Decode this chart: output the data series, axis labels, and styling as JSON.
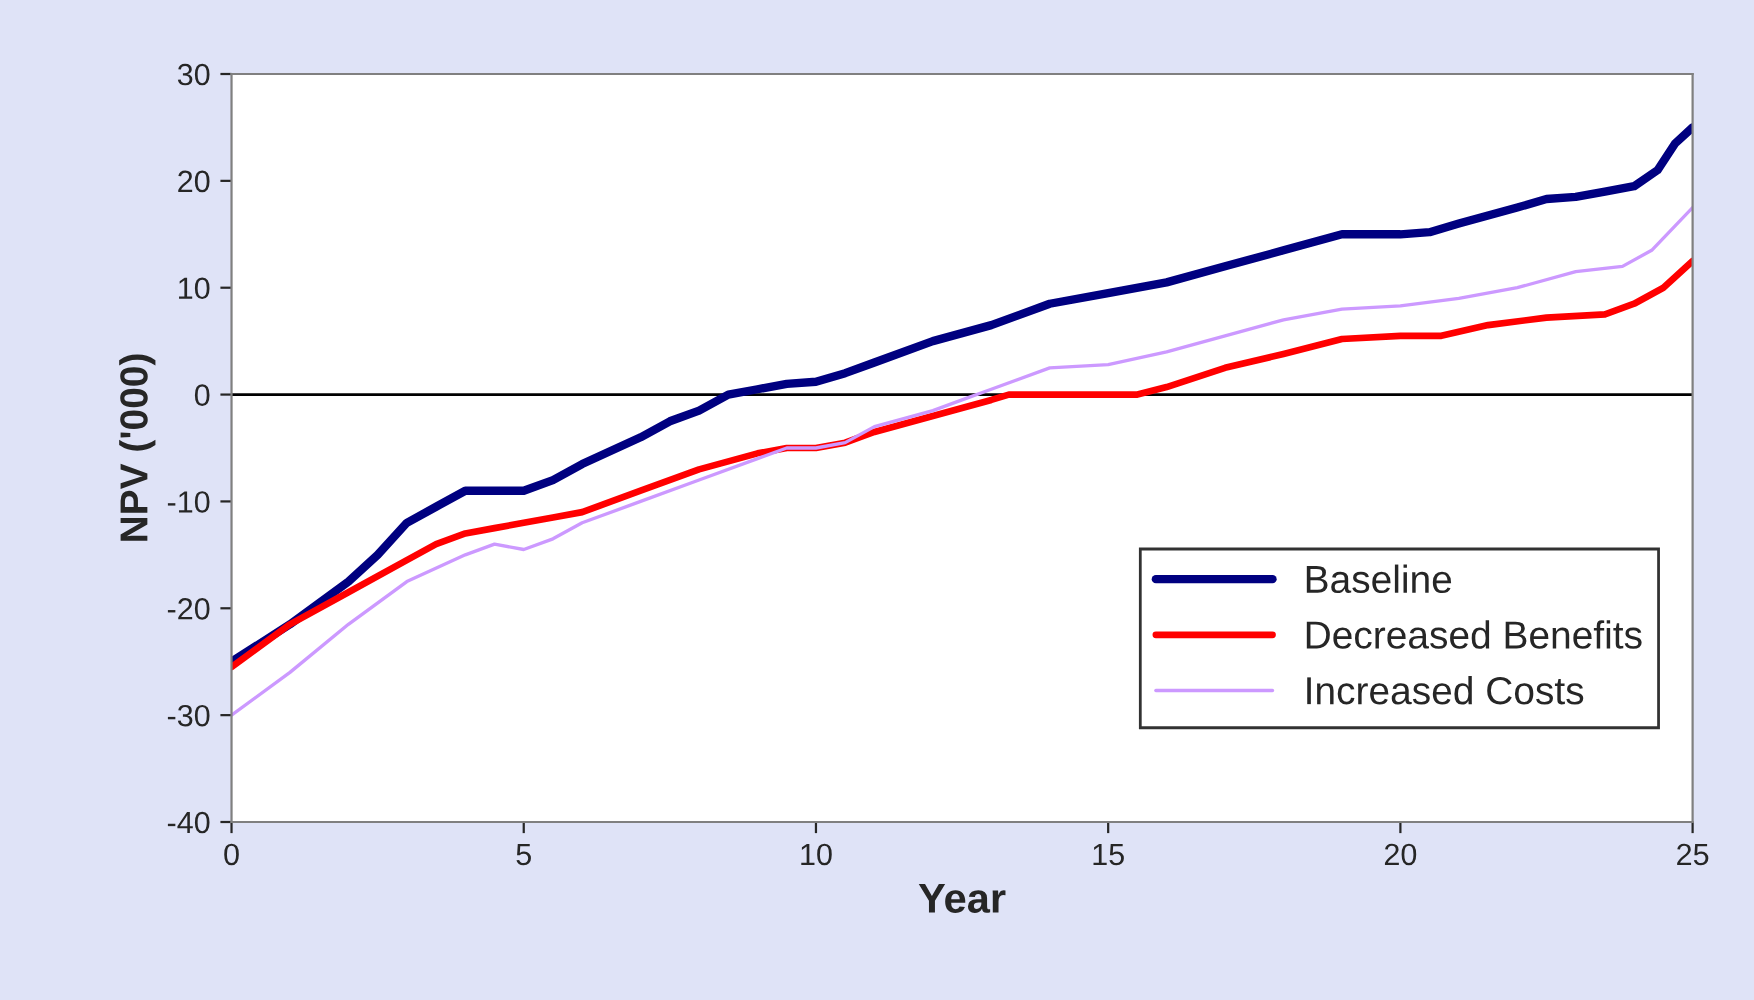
{
  "chart_data": {
    "type": "line",
    "xlabel": "Year",
    "ylabel": "NPV ('000)",
    "xlim": [
      0,
      25
    ],
    "xticks": [
      0,
      5,
      10,
      15,
      20,
      25
    ],
    "ylim": [
      -40,
      30
    ],
    "yticks": [
      -40,
      -30,
      -20,
      -10,
      0,
      10,
      20,
      30
    ],
    "ref_lines": [
      {
        "axis": "y",
        "value": 0,
        "color": "#000000"
      }
    ],
    "legend": "bottom right",
    "grid": false,
    "series": [
      {
        "name": "Baseline",
        "color": "#000080",
        "x": [
          0,
          1,
          2,
          2.5,
          3,
          3.5,
          4,
          5,
          5.5,
          6,
          7,
          7.5,
          8,
          8.5,
          9,
          9.5,
          10,
          10.5,
          11,
          12,
          13,
          14,
          15,
          16,
          17,
          18,
          19,
          20,
          20.5,
          21,
          22,
          22.5,
          23,
          23.5,
          24,
          24.4,
          24.7,
          25
        ],
        "values": [
          -25,
          -21.5,
          -17.5,
          -15,
          -12,
          -10.5,
          -9,
          -9,
          -8,
          -6.5,
          -4,
          -2.5,
          -1.5,
          0,
          0.5,
          1,
          1.2,
          2,
          3,
          5,
          6.5,
          8.5,
          9.5,
          10.5,
          12,
          13.5,
          15,
          15,
          15.2,
          16,
          17.5,
          18.3,
          18.5,
          19,
          19.5,
          21,
          23.5,
          25
        ]
      },
      {
        "name": "Decreased Benefits",
        "color": "#ff0000",
        "x": [
          0,
          1,
          2,
          3,
          3.5,
          4,
          4.5,
          5,
          5.5,
          6,
          7,
          8,
          9,
          9.5,
          10,
          10.5,
          11,
          12,
          13,
          13.3,
          15.5,
          16,
          17,
          18,
          19,
          20,
          20.7,
          21.5,
          22.5,
          23.5,
          24,
          24.5,
          25
        ],
        "values": [
          -25.5,
          -21.5,
          -18.5,
          -15.5,
          -14,
          -13,
          -12.5,
          -12,
          -11.5,
          -11,
          -9,
          -7,
          -5.5,
          -5,
          -5,
          -4.5,
          -3.5,
          -2,
          -0.5,
          0,
          0,
          0.7,
          2.5,
          3.8,
          5.2,
          5.5,
          5.5,
          6.5,
          7.2,
          7.5,
          8.5,
          10,
          12.5
        ]
      },
      {
        "name": "Increased Costs",
        "color": "#cc99ff",
        "x": [
          0,
          1,
          2,
          3,
          4,
          4.5,
          5,
          5.5,
          6,
          7,
          8,
          9,
          9.5,
          10,
          10.5,
          11,
          12,
          12.5,
          13,
          14,
          15,
          16,
          17,
          18,
          19,
          20,
          21,
          22,
          23,
          23.8,
          24.3,
          25
        ],
        "values": [
          -30,
          -26,
          -21.5,
          -17.5,
          -15,
          -14,
          -14.5,
          -13.5,
          -12,
          -10,
          -8,
          -6,
          -5,
          -5,
          -4.5,
          -3,
          -1.5,
          -0.5,
          0.5,
          2.5,
          2.8,
          4,
          5.5,
          7,
          8,
          8.3,
          9,
          10,
          11.5,
          12,
          13.5,
          17.5
        ]
      }
    ]
  }
}
